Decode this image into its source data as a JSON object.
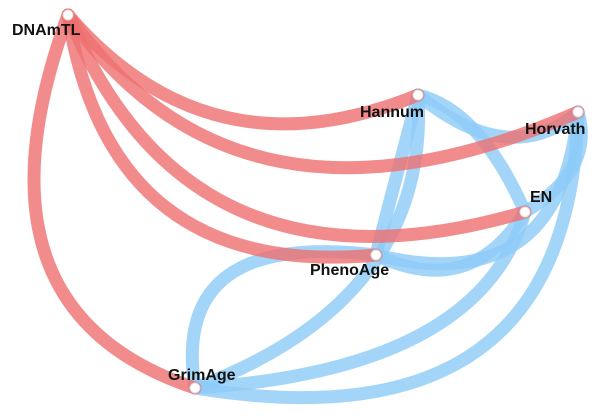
{
  "nodes": [
    {
      "label": "DNAmTL"
    },
    {
      "label": "Hannum"
    },
    {
      "label": "Horvath"
    },
    {
      "label": "EN"
    },
    {
      "label": "PhenoAge"
    },
    {
      "label": "GrimAge"
    }
  ]
}
